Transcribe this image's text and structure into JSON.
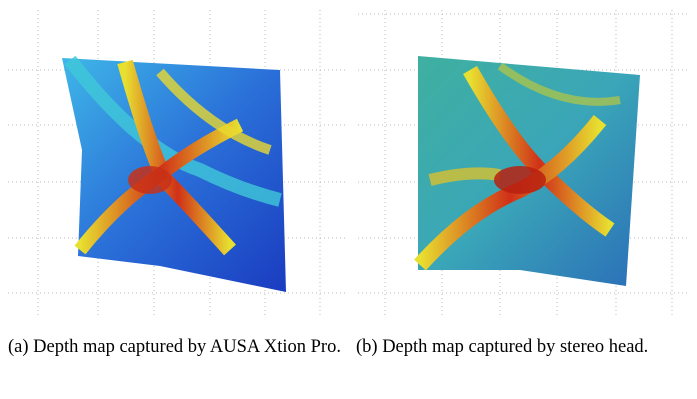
{
  "figure": {
    "captions": [
      "(a) Depth map captured by AUSA Xtion Pro.",
      "(b) Depth map captured by stereo head."
    ]
  }
}
